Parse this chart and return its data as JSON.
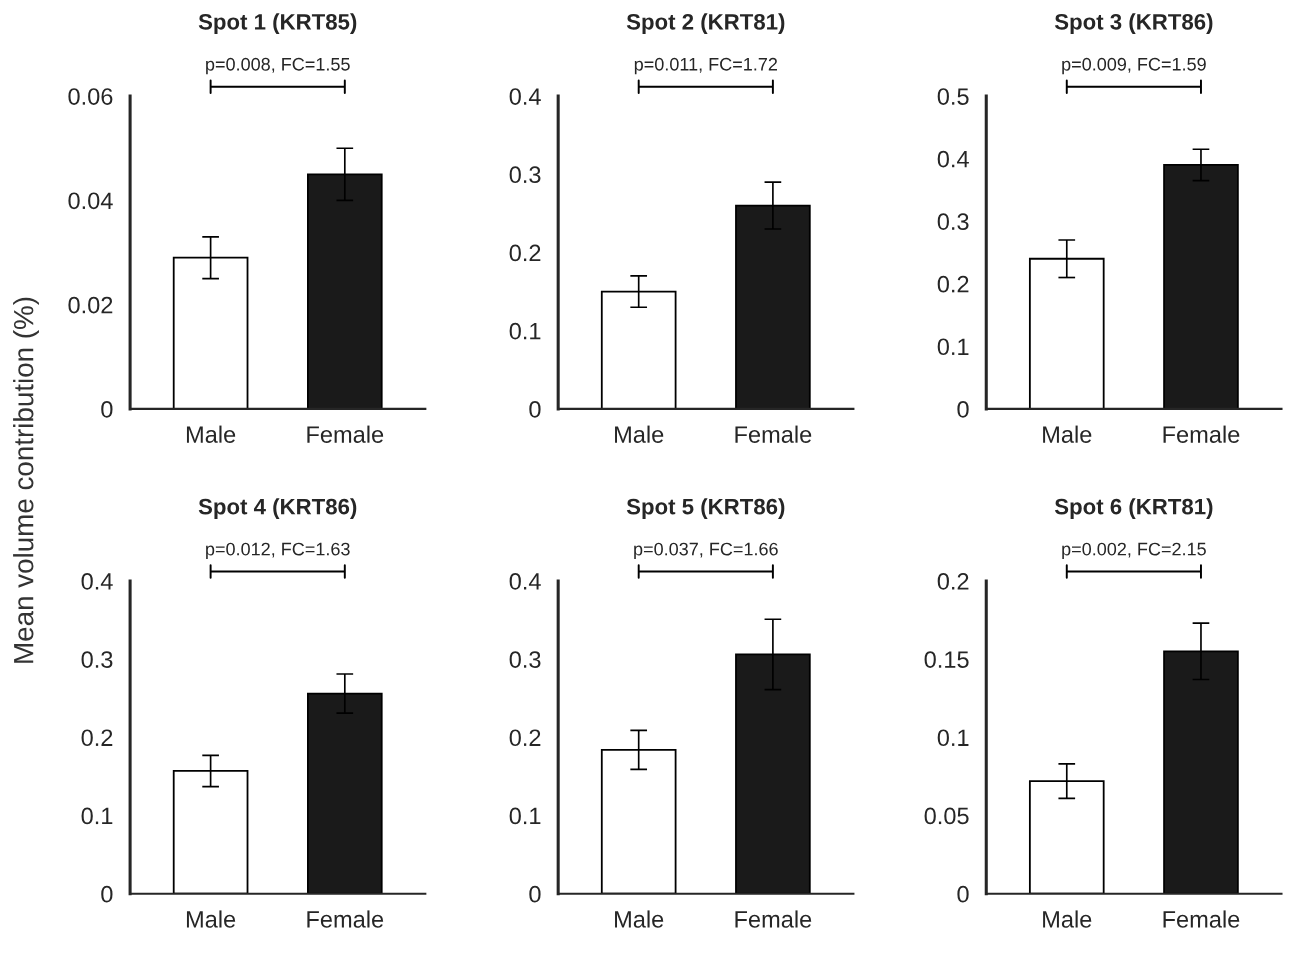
{
  "chart_data": [
    {
      "type": "bar",
      "title": "Spot 1 (KRT85)",
      "ylabel": "Mean volume contribution (%)",
      "categories": [
        "Male",
        "Female"
      ],
      "values": [
        0.029,
        0.045
      ],
      "errors": [
        0.004,
        0.005
      ],
      "colors": [
        "#ffffff",
        "#1a1a1a"
      ],
      "ylim": [
        0,
        0.06
      ],
      "yticks": [
        0,
        0.02,
        0.04,
        0.06
      ],
      "annotations": [
        "p=0.008, FC=1.55"
      ],
      "grid": false,
      "legend": false
    },
    {
      "type": "bar",
      "title": "Spot 2 (KRT81)",
      "categories": [
        "Male",
        "Female"
      ],
      "values": [
        0.15,
        0.26
      ],
      "errors": [
        0.02,
        0.03
      ],
      "colors": [
        "#ffffff",
        "#1a1a1a"
      ],
      "ylim": [
        0,
        0.4
      ],
      "yticks": [
        0,
        0.1,
        0.2,
        0.3,
        0.4
      ],
      "annotations": [
        "p=0.011, FC=1.72"
      ],
      "grid": false,
      "legend": false
    },
    {
      "type": "bar",
      "title": "Spot 3 (KRT86)",
      "categories": [
        "Male",
        "Female"
      ],
      "values": [
        0.24,
        0.39
      ],
      "errors": [
        0.03,
        0.025
      ],
      "colors": [
        "#ffffff",
        "#1a1a1a"
      ],
      "ylim": [
        0,
        0.5
      ],
      "yticks": [
        0,
        0.1,
        0.2,
        0.3,
        0.4,
        0.5
      ],
      "annotations": [
        "p=0.009, FC=1.59"
      ],
      "grid": false,
      "legend": false
    },
    {
      "type": "bar",
      "title": "Spot 4 (KRT86)",
      "categories": [
        "Male",
        "Female"
      ],
      "values": [
        0.157,
        0.256
      ],
      "errors": [
        0.02,
        0.025
      ],
      "colors": [
        "#ffffff",
        "#1a1a1a"
      ],
      "ylim": [
        0,
        0.4
      ],
      "yticks": [
        0,
        0.1,
        0.2,
        0.3,
        0.4
      ],
      "annotations": [
        "p=0.012, FC=1.63"
      ],
      "grid": false,
      "legend": false
    },
    {
      "type": "bar",
      "title": "Spot 5 (KRT86)",
      "categories": [
        "Male",
        "Female"
      ],
      "values": [
        0.184,
        0.306
      ],
      "errors": [
        0.025,
        0.045
      ],
      "colors": [
        "#ffffff",
        "#1a1a1a"
      ],
      "ylim": [
        0,
        0.4
      ],
      "yticks": [
        0,
        0.1,
        0.2,
        0.3,
        0.4
      ],
      "annotations": [
        "p=0.037, FC=1.66"
      ],
      "grid": false,
      "legend": false
    },
    {
      "type": "bar",
      "title": "Spot 6 (KRT81)",
      "categories": [
        "Male",
        "Female"
      ],
      "values": [
        0.072,
        0.155
      ],
      "errors": [
        0.011,
        0.018
      ],
      "colors": [
        "#ffffff",
        "#1a1a1a"
      ],
      "ylim": [
        0,
        0.2
      ],
      "yticks": [
        0,
        0.05,
        0.1,
        0.15,
        0.2
      ],
      "annotations": [
        "p=0.002, FC=2.15"
      ],
      "grid": false,
      "legend": false
    }
  ]
}
